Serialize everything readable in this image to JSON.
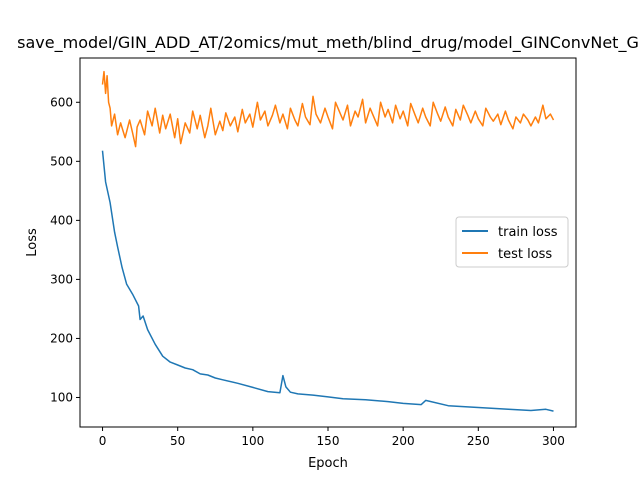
{
  "chart_data": {
    "type": "line",
    "title": "save_model/GIN_ADD_AT/2omics/mut_meth/blind_drug/model_GINConvNet_G",
    "xlabel": "Epoch",
    "ylabel": "Loss",
    "xlim": [
      -15,
      315
    ],
    "ylim": [
      50,
      675
    ],
    "xticks": [
      0,
      50,
      100,
      150,
      200,
      250,
      300
    ],
    "yticks": [
      100,
      200,
      300,
      400,
      500,
      600
    ],
    "grid": false,
    "legend_position": "center-right",
    "series": [
      {
        "name": "train loss",
        "color": "#1f77b4",
        "x": [
          0,
          2,
          5,
          8,
          10,
          13,
          16,
          20,
          24,
          25,
          27,
          30,
          35,
          40,
          45,
          50,
          55,
          60,
          65,
          70,
          75,
          80,
          90,
          100,
          110,
          118,
          120,
          122,
          125,
          130,
          140,
          150,
          160,
          175,
          190,
          200,
          212,
          215,
          230,
          250,
          270,
          285,
          295,
          300
        ],
        "y": [
          518,
          465,
          430,
          380,
          355,
          320,
          292,
          275,
          255,
          232,
          238,
          215,
          190,
          170,
          160,
          155,
          150,
          147,
          140,
          138,
          133,
          130,
          124,
          117,
          110,
          108,
          137,
          118,
          109,
          106,
          104,
          101,
          98,
          96,
          93,
          90,
          88,
          95,
          86,
          83,
          80,
          78,
          80,
          77
        ]
      },
      {
        "name": "test loss",
        "color": "#ff7f0e",
        "x": [
          0,
          1,
          2,
          3,
          4,
          5,
          6,
          8,
          10,
          12,
          15,
          18,
          20,
          22,
          23,
          25,
          28,
          30,
          33,
          35,
          38,
          40,
          42,
          45,
          48,
          50,
          52,
          55,
          58,
          60,
          63,
          65,
          68,
          70,
          72,
          75,
          78,
          80,
          82,
          85,
          88,
          90,
          93,
          95,
          98,
          100,
          103,
          105,
          108,
          110,
          113,
          115,
          118,
          120,
          123,
          125,
          128,
          130,
          133,
          135,
          138,
          140,
          142,
          145,
          148,
          150,
          153,
          155,
          158,
          160,
          163,
          165,
          168,
          170,
          173,
          175,
          178,
          180,
          183,
          185,
          188,
          190,
          193,
          195,
          198,
          200,
          203,
          205,
          208,
          210,
          213,
          215,
          218,
          220,
          223,
          225,
          228,
          230,
          233,
          235,
          238,
          240,
          243,
          245,
          248,
          250,
          253,
          255,
          258,
          260,
          263,
          265,
          268,
          270,
          273,
          275,
          278,
          280,
          283,
          285,
          288,
          290,
          293,
          295,
          298,
          300
        ],
        "y": [
          630,
          652,
          615,
          645,
          600,
          590,
          560,
          580,
          545,
          565,
          540,
          570,
          548,
          525,
          558,
          570,
          545,
          585,
          560,
          590,
          548,
          578,
          555,
          580,
          540,
          572,
          530,
          565,
          548,
          585,
          555,
          578,
          540,
          560,
          590,
          545,
          568,
          552,
          582,
          560,
          575,
          550,
          588,
          565,
          580,
          558,
          600,
          570,
          585,
          560,
          578,
          595,
          565,
          580,
          555,
          590,
          570,
          560,
          598,
          575,
          562,
          610,
          580,
          565,
          590,
          575,
          555,
          600,
          582,
          570,
          595,
          560,
          585,
          575,
          605,
          565,
          590,
          578,
          560,
          600,
          575,
          588,
          565,
          595,
          572,
          585,
          560,
          598,
          578,
          565,
          590,
          575,
          560,
          600,
          580,
          568,
          592,
          575,
          560,
          588,
          570,
          595,
          578,
          565,
          585,
          572,
          560,
          590,
          575,
          568,
          580,
          562,
          585,
          570,
          555,
          575,
          565,
          580,
          570,
          560,
          575,
          565,
          595,
          572,
          580,
          570
        ]
      }
    ]
  }
}
